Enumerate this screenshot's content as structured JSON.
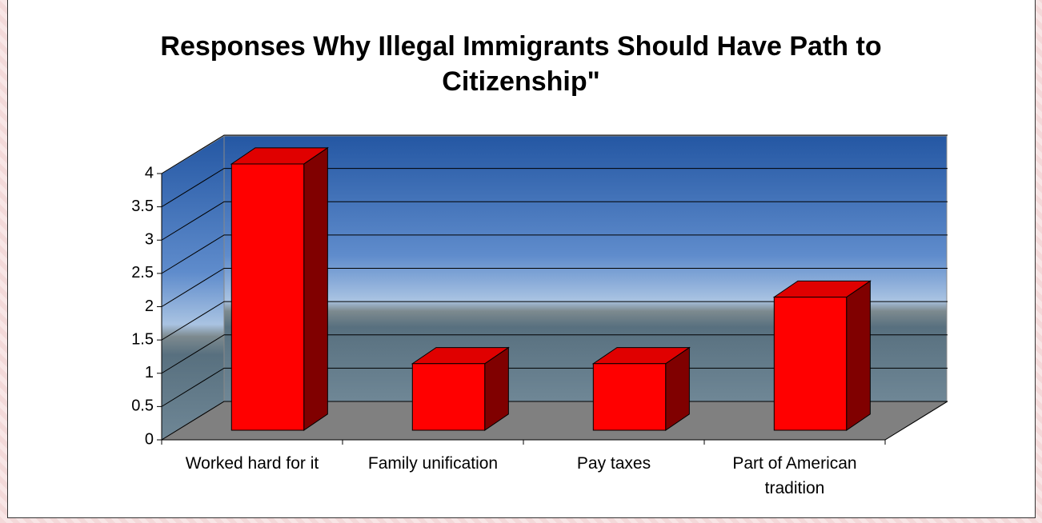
{
  "chart_data": {
    "type": "bar",
    "title": "Responses Why Illegal Immigrants Should Have Path to Citizenship\"",
    "categories": [
      "Worked hard for it",
      "Family unification",
      "Pay taxes",
      "Part of American tradition"
    ],
    "values": [
      4,
      1,
      1,
      2
    ],
    "color": "#ff0000",
    "ylim": [
      0,
      4
    ],
    "yticks": [
      0,
      0.5,
      1,
      1.5,
      2,
      2.5,
      3,
      3.5,
      4
    ],
    "grid": true
  }
}
